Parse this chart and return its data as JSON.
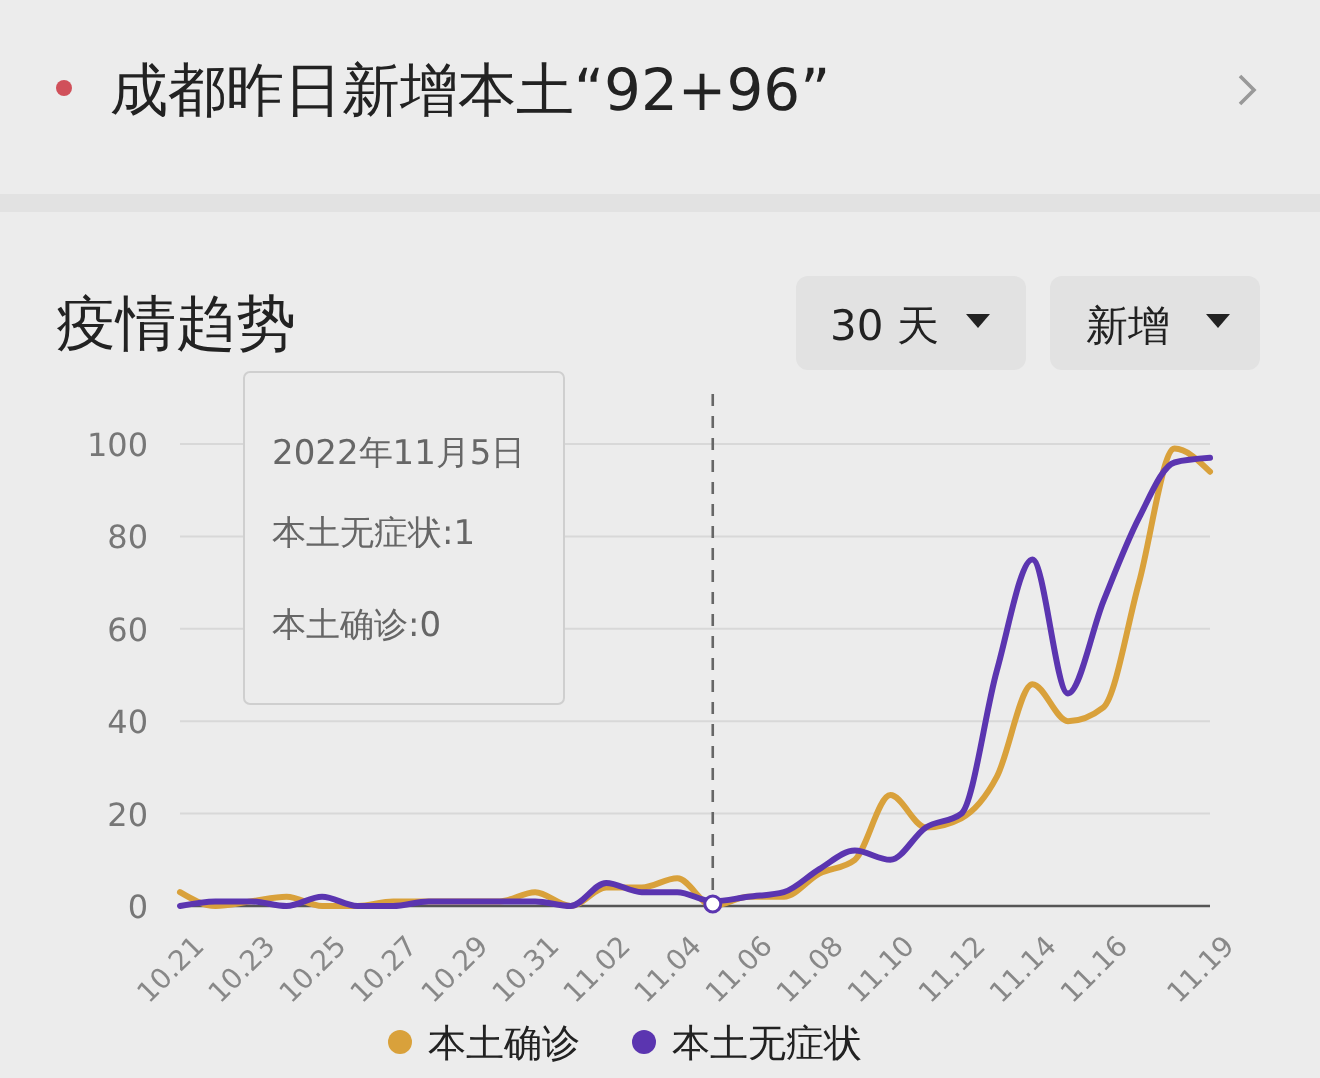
{
  "chart_data": {
    "type": "line",
    "title": "疫情趋势",
    "annotations": [
      "成都昨日新增本土“92+96”",
      "30 天",
      "新增",
      "2022年11月5日",
      "本土无症状:1",
      "本土确诊:0"
    ],
    "x": [
      "2022-10-21",
      "2022-10-22",
      "2022-10-23",
      "2022-10-24",
      "2022-10-25",
      "2022-10-26",
      "2022-10-27",
      "2022-10-28",
      "2022-10-29",
      "2022-10-30",
      "2022-10-31",
      "2022-11-01",
      "2022-11-02",
      "2022-11-03",
      "2022-11-04",
      "2022-11-05",
      "2022-11-06",
      "2022-11-07",
      "2022-11-08",
      "2022-11-09",
      "2022-11-10",
      "2022-11-11",
      "2022-11-12",
      "2022-11-13",
      "2022-11-14",
      "2022-11-15",
      "2022-11-16",
      "2022-11-17",
      "2022-11-18",
      "2022-11-19"
    ],
    "series": [
      {
        "name": "本土确诊",
        "color": "#d9a13b",
        "values": [
          3,
          0,
          1,
          2,
          0,
          0,
          1,
          1,
          1,
          1,
          3,
          0,
          4,
          4,
          6,
          0,
          2,
          2,
          7,
          10,
          24,
          17,
          19,
          28,
          48,
          40,
          43,
          70,
          99,
          94
        ]
      },
      {
        "name": "本土无症状",
        "color": "#5b35b0",
        "values": [
          0,
          1,
          1,
          0,
          2,
          0,
          0,
          1,
          1,
          1,
          1,
          0,
          5,
          3,
          3,
          1,
          2,
          3,
          8,
          12,
          10,
          17,
          20,
          51,
          75,
          46,
          66,
          84,
          96,
          97
        ]
      }
    ],
    "xlim": [
      "2022-10-21",
      "2022-11-19"
    ],
    "xticks": [
      {
        "value": "2022-10-21",
        "label": "10.21"
      },
      {
        "value": "2022-10-23",
        "label": "10.23"
      },
      {
        "value": "2022-10-25",
        "label": "10.25"
      },
      {
        "value": "2022-10-27",
        "label": "10.27"
      },
      {
        "value": "2022-10-29",
        "label": "10.29"
      },
      {
        "value": "2022-10-31",
        "label": "10.31"
      },
      {
        "value": "2022-11-02",
        "label": "11.02"
      },
      {
        "value": "2022-11-04",
        "label": "11.04"
      },
      {
        "value": "2022-11-06",
        "label": "11.06"
      },
      {
        "value": "2022-11-08",
        "label": "11.08"
      },
      {
        "value": "2022-11-10",
        "label": "11.10"
      },
      {
        "value": "2022-11-12",
        "label": "11.12"
      },
      {
        "value": "2022-11-14",
        "label": "11.14"
      },
      {
        "value": "2022-11-16",
        "label": "11.16"
      },
      {
        "value": "2022-11-19",
        "label": "11.19"
      }
    ],
    "ylim": [
      0,
      100
    ],
    "yticks": [
      0,
      20,
      40,
      60,
      80,
      100
    ],
    "grid": "y",
    "legend": "bottom",
    "marker": "none",
    "line_style": "solid",
    "ref_lines": [
      {
        "axis": "x",
        "value": "2022-11-05",
        "color": "#666666",
        "line_style": "dashed"
      }
    ]
  }
}
